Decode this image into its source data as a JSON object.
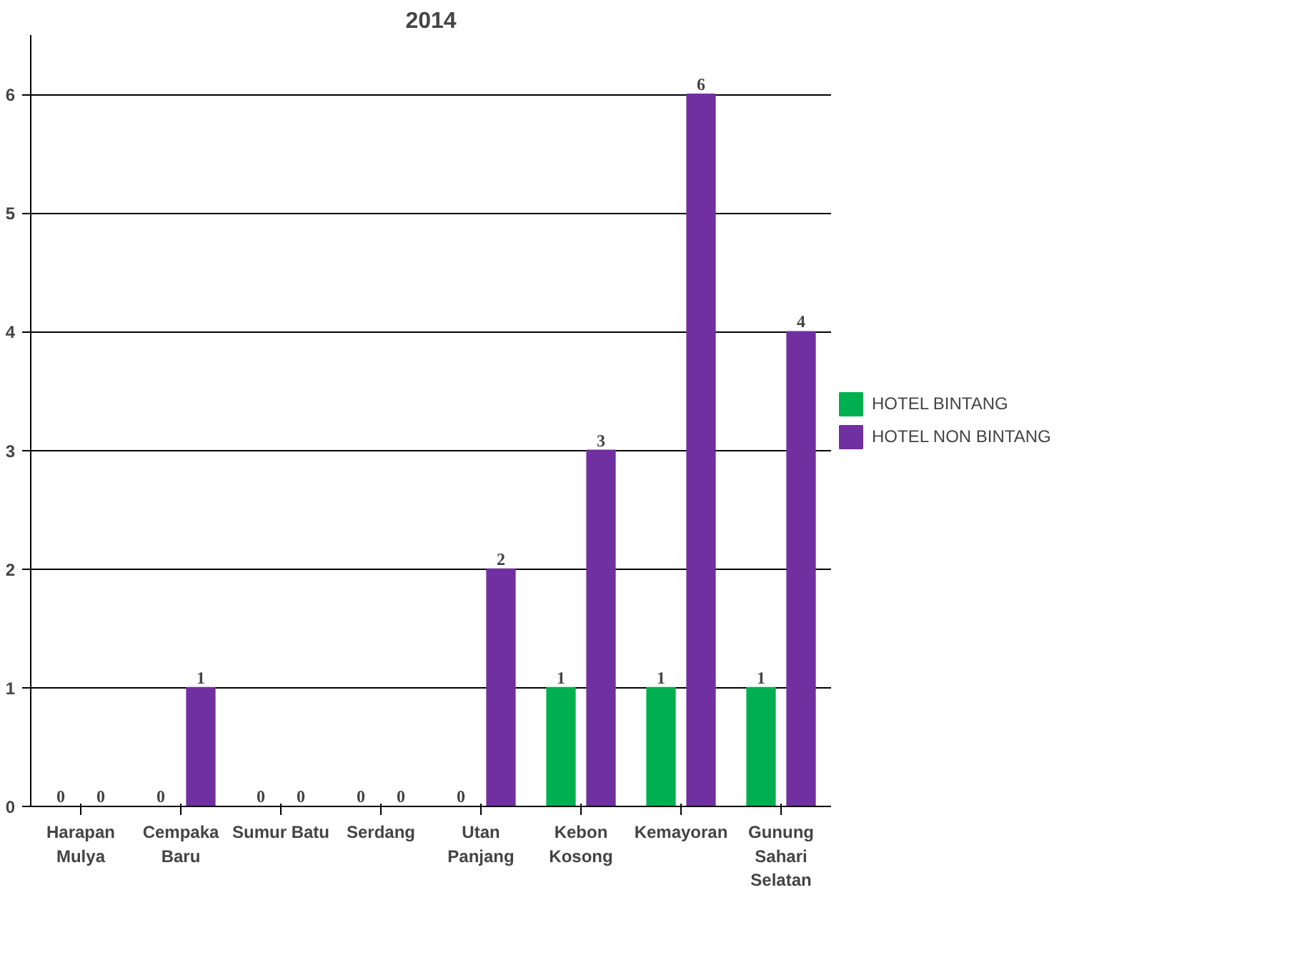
{
  "chart_data": {
    "type": "bar",
    "title": "2014",
    "categories": [
      "Harapan Mulya",
      "Cempaka Baru",
      "Sumur Batu",
      "Serdang",
      "Utan Panjang",
      "Kebon Kosong",
      "Kemayoran",
      "Gunung Sahari Selatan"
    ],
    "series": [
      {
        "name": "HOTEL BINTANG",
        "color": "#00b050",
        "values": [
          0,
          0,
          0,
          0,
          0,
          1,
          1,
          1
        ]
      },
      {
        "name": "HOTEL NON BINTANG",
        "color": "#7030a0",
        "values": [
          0,
          1,
          0,
          0,
          2,
          3,
          6,
          4
        ]
      }
    ],
    "ylim": [
      0,
      6.5
    ],
    "yticks": [
      0,
      1,
      2,
      3,
      4,
      5,
      6
    ],
    "grid": "y",
    "legend": "right",
    "data_labels": true
  }
}
